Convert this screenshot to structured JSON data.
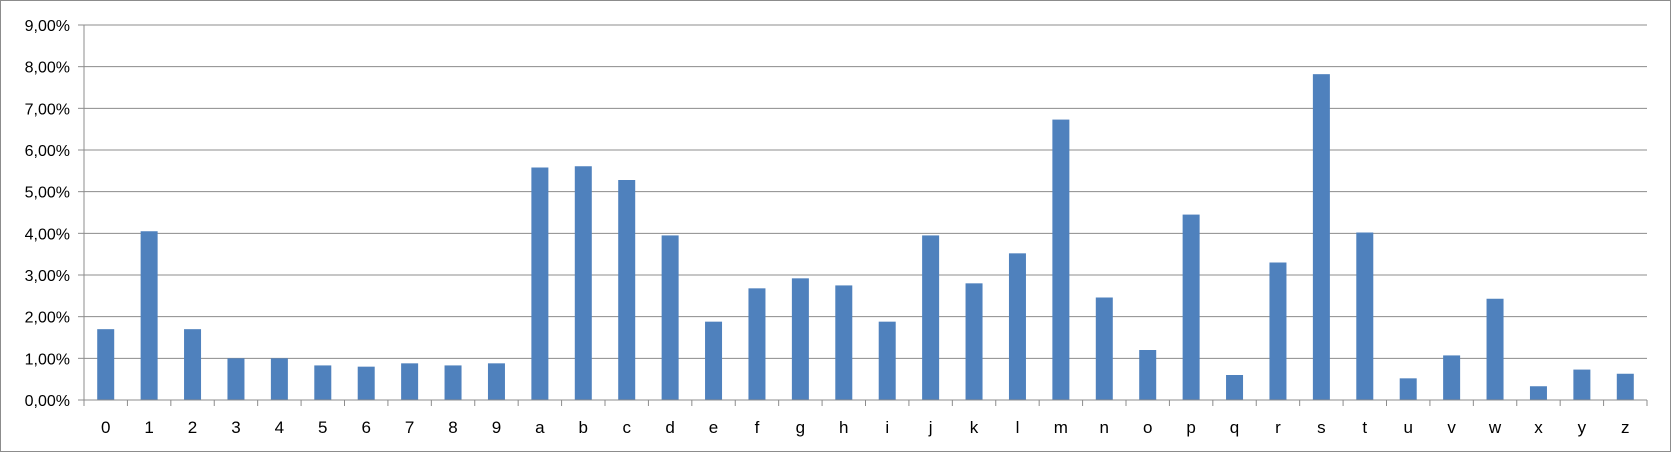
{
  "chart_data": {
    "type": "bar",
    "title": "",
    "xlabel": "",
    "ylabel": "",
    "ylim": [
      0,
      9
    ],
    "y_ticks": [
      "0,00%",
      "1,00%",
      "2,00%",
      "3,00%",
      "4,00%",
      "5,00%",
      "6,00%",
      "7,00%",
      "8,00%",
      "9,00%"
    ],
    "grid": true,
    "legend": "none",
    "bar_color": "#4f81bd",
    "categories": [
      "0",
      "1",
      "2",
      "3",
      "4",
      "5",
      "6",
      "7",
      "8",
      "9",
      "a",
      "b",
      "c",
      "d",
      "e",
      "f",
      "g",
      "h",
      "i",
      "j",
      "k",
      "l",
      "m",
      "n",
      "o",
      "p",
      "q",
      "r",
      "s",
      "t",
      "u",
      "v",
      "w",
      "x",
      "y",
      "z"
    ],
    "values": [
      1.7,
      4.05,
      1.7,
      1.0,
      1.0,
      0.83,
      0.8,
      0.88,
      0.83,
      0.88,
      5.58,
      5.61,
      5.28,
      3.95,
      1.88,
      2.68,
      2.92,
      2.75,
      1.88,
      3.95,
      2.8,
      3.52,
      6.73,
      2.46,
      1.2,
      4.45,
      0.6,
      3.3,
      7.82,
      4.02,
      0.52,
      1.07,
      2.43,
      0.33,
      0.73,
      0.63
    ]
  }
}
